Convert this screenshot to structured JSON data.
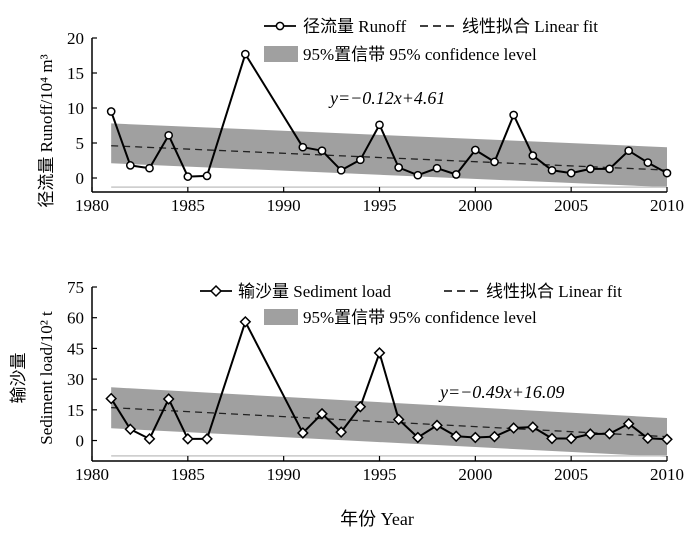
{
  "colors": {
    "band": "#a0a0a0",
    "line": "#000000",
    "marker_fill": "#ffffff",
    "baseline": "#c8c8c8"
  },
  "figure": {
    "xlabel": "年份 Year"
  },
  "chart_data": [
    {
      "type": "line",
      "panel": "runoff",
      "marker": "circle",
      "ylabel": "径流量 Runoff/10⁴ m³",
      "xlim": [
        1980,
        2010
      ],
      "ylim": [
        -2,
        20
      ],
      "xticks": [
        1980,
        1985,
        1990,
        1995,
        2000,
        2005,
        2010
      ],
      "yticks": [
        0,
        5,
        10,
        15,
        20
      ],
      "legend": {
        "series_label": "径流量 Runoff",
        "fit_label": "线性拟合 Linear fit",
        "band_label": "95%置信带 95% confidence level"
      },
      "equation": "y=−0.12x+4.61",
      "x": [
        1981,
        1982,
        1983,
        1984,
        1985,
        1986,
        1988,
        1991,
        1992,
        1993,
        1994,
        1995,
        1996,
        1997,
        1998,
        1999,
        2000,
        2001,
        2002,
        2003,
        2004,
        2005,
        2006,
        2007,
        2008,
        2009,
        2010
      ],
      "values": [
        9.5,
        1.8,
        1.4,
        6.1,
        0.2,
        0.3,
        17.7,
        4.4,
        3.9,
        1.1,
        2.6,
        7.6,
        1.5,
        0.4,
        1.4,
        0.5,
        4.0,
        2.3,
        9.0,
        3.2,
        1.1,
        0.7,
        1.3,
        1.3,
        3.9,
        2.2,
        0.7
      ],
      "fit": {
        "x0": 1981,
        "y0": 4.61,
        "x1": 2010,
        "y1": 1.13
      },
      "band_upper": {
        "y0": 7.8,
        "y1": 4.4
      },
      "band_lower": {
        "y0": 2.1,
        "y1": -1.3
      },
      "baseline": {
        "y": -1.3,
        "x0": 1981,
        "x1": 2010
      }
    },
    {
      "type": "line",
      "panel": "sediment",
      "marker": "diamond",
      "ylabel_cn": "输沙量",
      "ylabel_en": "Sediment load/10² t",
      "xlim": [
        1980,
        2010
      ],
      "ylim": [
        -10,
        75
      ],
      "xticks": [
        1980,
        1985,
        1990,
        1995,
        2000,
        2005,
        2010
      ],
      "yticks": [
        0,
        15,
        30,
        45,
        60,
        75
      ],
      "legend": {
        "series_label": "输沙量 Sediment load",
        "fit_label": "线性拟合 Linear fit",
        "band_label": "95%置信带 95% confidence level"
      },
      "equation": "y=−0.49x+16.09",
      "x": [
        1981,
        1982,
        1983,
        1984,
        1985,
        1986,
        1988,
        1991,
        1992,
        1993,
        1994,
        1995,
        1996,
        1997,
        1998,
        1999,
        2000,
        2001,
        2002,
        2003,
        2004,
        2005,
        2006,
        2007,
        2008,
        2009,
        2010
      ],
      "values": [
        20.5,
        5.5,
        0.8,
        20.3,
        0.8,
        0.8,
        58.0,
        3.7,
        13.1,
        4.1,
        16.5,
        42.8,
        10.3,
        1.5,
        7.4,
        2.1,
        1.5,
        1.9,
        6.1,
        6.6,
        1.0,
        1.0,
        3.2,
        3.3,
        8.2,
        1.1,
        0.6
      ],
      "fit": {
        "x0": 1981,
        "y0": 16.09,
        "x1": 2010,
        "y1": 1.88
      },
      "band_upper": {
        "y0": 26.0,
        "y1": 11.0
      },
      "band_lower": {
        "y0": 6.0,
        "y1": -8.0
      },
      "baseline": {
        "y": -7.5,
        "x0": 1981,
        "x1": 2010
      }
    }
  ]
}
